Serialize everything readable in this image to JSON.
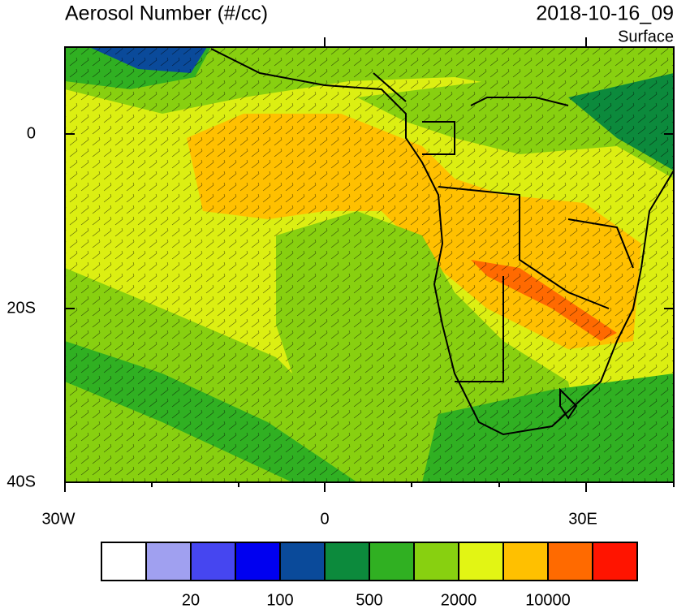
{
  "header": {
    "title": "Aerosol Number (#/cc)",
    "date": "2018-10-16_09",
    "level": "Surface"
  },
  "map": {
    "lat_labels": [
      "0",
      "20S",
      "40S"
    ],
    "lon_labels": [
      "30W",
      "0",
      "30E"
    ]
  },
  "colorbar": {
    "colors": [
      "#ffffff",
      "#a0a0f0",
      "#4646f0",
      "#0000f0",
      "#0a4a9a",
      "#0c8a3c",
      "#30b022",
      "#88d010",
      "#e2f514",
      "#ffc000",
      "#ff6a00",
      "#ff1400"
    ],
    "labels": [
      "20",
      "100",
      "500",
      "2000",
      "10000"
    ]
  }
}
